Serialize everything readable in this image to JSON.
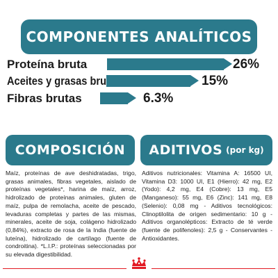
{
  "analytical": {
    "title": "COMPONENTES ANALÍTICOS",
    "rows": [
      {
        "label": "Proteína bruta",
        "value": "26%",
        "level": 26
      },
      {
        "label": "Aceites y grasas brutos",
        "value": "15%",
        "level": 15
      },
      {
        "label": "Fibras brutas",
        "value": "6.3%",
        "level": 6.3
      }
    ]
  },
  "composition": {
    "title": "COMPOSICIÓN",
    "text": "Maíz, proteínas de ave deshidratadas, trigo, grasas animales, fibras vegetales, aislado de proteínas vegetales*, harina de maíz, arroz, hidrolizado de proteínas animales, gluten de maíz, pulpa de remolacha, aceite de pescado, levaduras completas y partes de las mismas, minerales, aceite de soja, colágeno hidrolizado (0,84%), extracto de rosa de la India (fuente de luteína), hidrolizado de cartílago (fuente de condroitina). *L.I.P.: proteínas seleccionadas por su elevada digestibilidad."
  },
  "additives": {
    "title": "ADITIVOS",
    "unit": "(por kg)",
    "text": "Aditivos nutricionales: Vitamina A: 16500 UI, Vitamina D3: 1000 UI, E1 (Hierro): 42 mg, E2 (Yodo): 4,2 mg, E4 (Cobre): 13 mg, E5 (Manganeso): 55 mg, E6 (Zinc): 141 mg, E8 (Selenio): 0,08 mg - Aditivos tecnológicos: Clinoptilolita de origen sedimentario: 10 g - Aditivos organolépticos: Extracto de té verde (fuente de polifenoles): 2,5 g - Conservantes - Antioxidantes."
  },
  "footer": {
    "logo_icon": "crown-icon",
    "rule_color": "#e21a23"
  },
  "colors": {
    "accent": "#2b7a8c"
  }
}
